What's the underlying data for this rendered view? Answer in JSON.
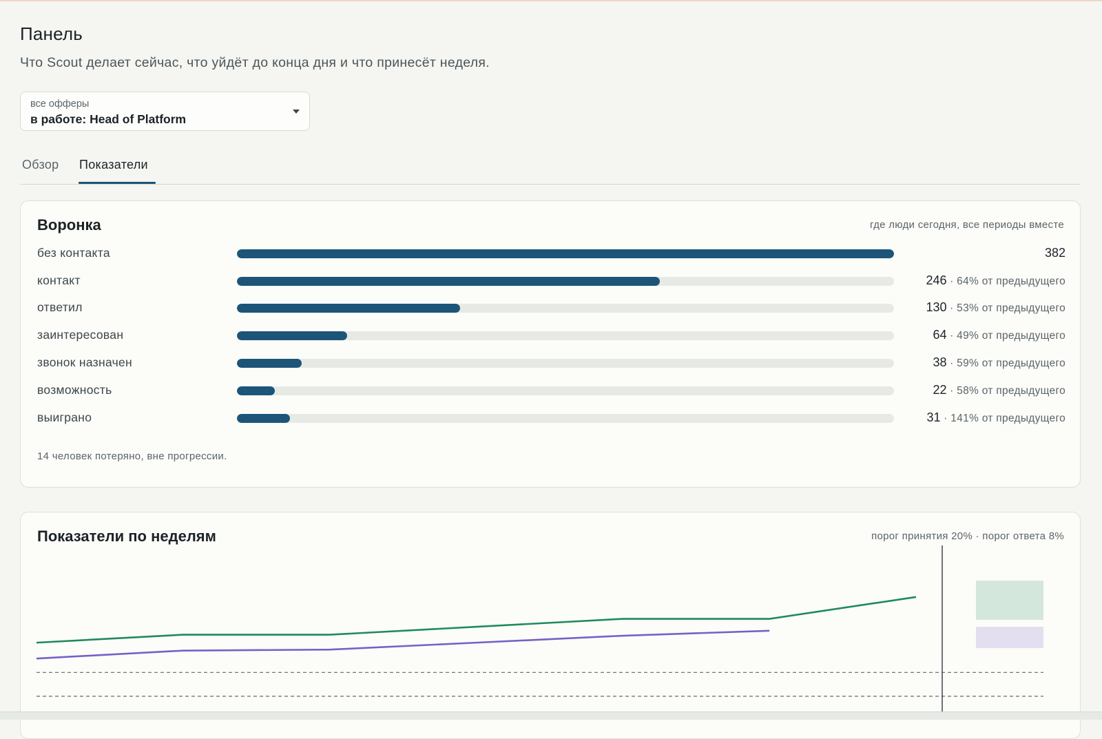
{
  "page": {
    "title": "Панель",
    "subtitle": "Что Scout делает сейчас, что уйдёт до конца дня и что принесёт неделя."
  },
  "offer_select": {
    "small_label": "все офферы",
    "value": "в работе: Head of Platform"
  },
  "tabs": [
    {
      "label": "Обзор",
      "active": false
    },
    {
      "label": "Показатели",
      "active": true
    }
  ],
  "colors": {
    "accent": "#1c5578",
    "track": "#e7eae4",
    "series_green": "#1f8a5b",
    "series_purple": "#7760c8"
  },
  "funnel": {
    "title": "Воронка",
    "note": "где люди сегодня, все периоды вместе",
    "stages": [
      {
        "label": "без контакта",
        "count": "382",
        "conversion": "",
        "share": 1.0
      },
      {
        "label": "контакт",
        "count": "246",
        "conversion": " · 64% от предыдущего",
        "share": 0.644
      },
      {
        "label": "ответил",
        "count": "130",
        "conversion": " · 53% от предыдущего",
        "share": 0.34
      },
      {
        "label": "заинтересован",
        "count": "64",
        "conversion": " · 49% от предыдущего",
        "share": 0.168
      },
      {
        "label": "звонок назначен",
        "count": "38",
        "conversion": " · 59% от предыдущего",
        "share": 0.099
      },
      {
        "label": "возможность",
        "count": "22",
        "conversion": " · 58% от предыдущего",
        "share": 0.058
      },
      {
        "label": "выиграно",
        "count": "31",
        "conversion": " · 141% от предыдущего",
        "share": 0.081
      }
    ],
    "footer": "14 человек потеряно, вне прогрессии."
  },
  "weekly": {
    "title": "Показатели по неделям",
    "note": "порог принятия 20% · порог ответа 8%"
  },
  "chart_data": {
    "type": "line",
    "x": [
      1,
      2,
      3,
      4,
      5,
      6,
      7
    ],
    "series": [
      {
        "values": [
          0.35,
          0.39,
          0.39,
          0.43,
          0.47,
          0.47,
          0.58
        ],
        "color": "#1f8a5b"
      },
      {
        "values": [
          0.27,
          0.31,
          0.315,
          0.35,
          0.385,
          0.41,
          null
        ],
        "color": "#7760c8"
      }
    ],
    "thresholds": [
      0.2,
      0.08
    ],
    "ylim": [
      0,
      0.85
    ],
    "grid": false,
    "legend": "right"
  }
}
